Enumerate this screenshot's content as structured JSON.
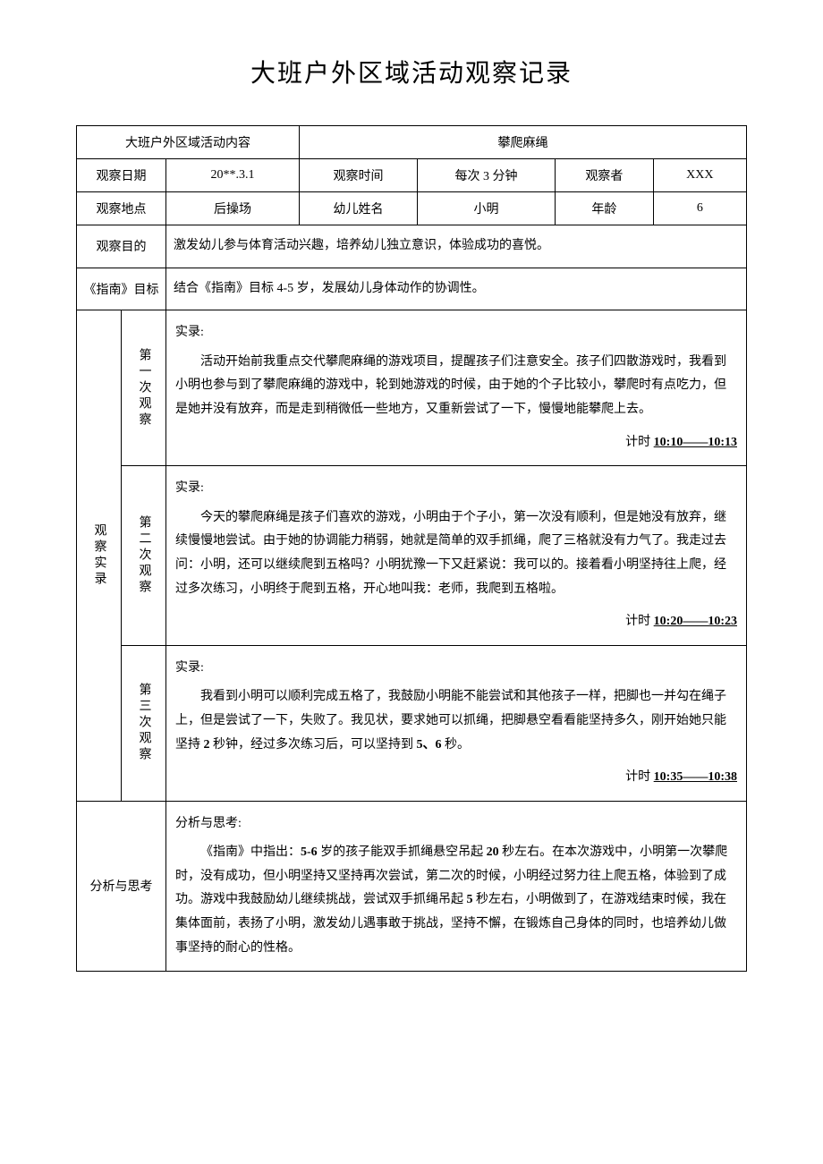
{
  "title": "大班户外区域活动观察记录",
  "header": {
    "activity_label": "大班户外区域活动内容",
    "activity_value": "攀爬麻绳",
    "row1": {
      "date_label": "观察日期",
      "date_value": "20**.3.1",
      "time_label": "观察时间",
      "time_value": "每次 3 分钟",
      "observer_label": "观察者",
      "observer_value": "XXX"
    },
    "row2": {
      "place_label": "观察地点",
      "place_value": "后操场",
      "name_label": "幼儿姓名",
      "name_value": "小明",
      "age_label": "年龄",
      "age_value": "6"
    },
    "row3": {
      "purpose_label": "观察目的",
      "purpose_value": "激发幼儿参与体育活动兴趣，培养幼儿独立意识，体验成功的喜悦。"
    },
    "row4": {
      "guide_label": "《指南》目标",
      "guide_value": "结合《指南》目标 4-5 岁，发展幼儿身体动作的协调性。"
    }
  },
  "observations": {
    "section_label": "观察实录",
    "record_prefix": "实录:",
    "time_prefix": "计时 ",
    "items": [
      {
        "label": "第一次观察",
        "body": "活动开始前我重点交代攀爬麻绳的游戏项目，提醒孩子们注意安全。孩子们四散游戏时，我看到小明也参与到了攀爬麻绳的游戏中，轮到她游戏的时候，由于她的个子比较小，攀爬时有点吃力，但是她并没有放弃，而是走到稍微低一些地方，又重新尝试了一下，慢慢地能攀爬上去。",
        "time": "10:10——10:13"
      },
      {
        "label": "第二次观察",
        "body": "今天的攀爬麻绳是孩子们喜欢的游戏，小明由于个子小，第一次没有顺利，但是她没有放弃，继续慢慢地尝试。由于她的协调能力稍弱，她就是简单的双手抓绳，爬了三格就没有力气了。我走过去问：小明，还可以继续爬到五格吗？小明犹豫一下又赶紧说：我可以的。接着看小明坚持往上爬，经过多次练习，小明终于爬到五格，开心地叫我：老师，我爬到五格啦。",
        "time": "10:20——10:23"
      },
      {
        "label": "第三次观察",
        "body_before_bold1": "我看到小明可以顺利完成五格了，我鼓励小明能不能尝试和其他孩子一样，把脚也一并勾在绳子上，但是尝试了一下，失败了。我见状，要求她可以抓绳，把脚悬空看看能坚持多久，刚开始她只能坚持 ",
        "bold1": "2",
        "body_mid": " 秒钟，经过多次练习后，可以坚持到 ",
        "bold2": "5、6",
        "body_after": " 秒。",
        "time": "10:35——10:38"
      }
    ]
  },
  "analysis": {
    "label": "分析与思考",
    "heading": "分析与思考:",
    "body_before": "《指南》中指出：",
    "bold1": "5-6",
    "body_mid1": " 岁的孩子能双手抓绳悬空吊起 ",
    "bold2": "20",
    "body_mid2": " 秒左右。在本次游戏中，小明第一次攀爬时，没有成功，但小明坚持又坚持再次尝试，第二次的时候，小明经过努力往上爬五格，体验到了成功。游戏中我鼓励幼儿继续挑战，尝试双手抓绳吊起 ",
    "bold3": "5",
    "body_after": " 秒左右，小明做到了，在游戏结束时候，我在集体面前，表扬了小明，激发幼儿遇事敢于挑战，坚持不懈，在锻炼自己身体的同时，也培养幼儿做事坚持的耐心的性格。"
  }
}
